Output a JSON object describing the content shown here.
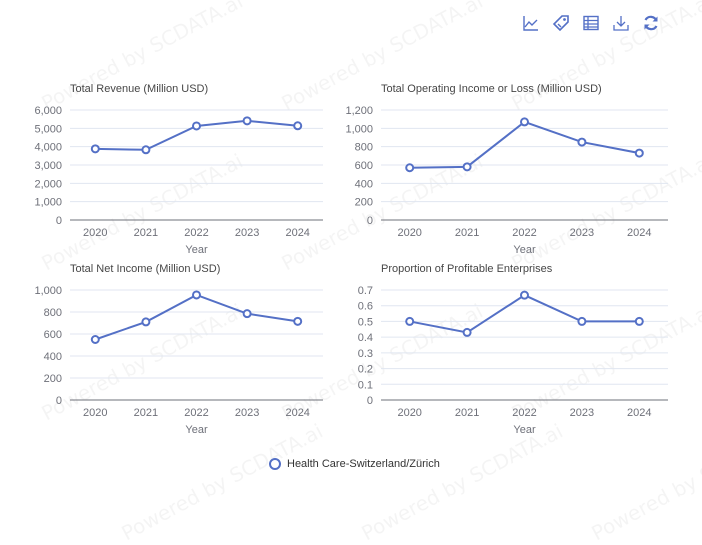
{
  "toolbar": {
    "icons": [
      "line-chart-icon",
      "tag-icon",
      "data-table-icon",
      "download-icon",
      "refresh-icon"
    ],
    "color": "#5470c6"
  },
  "watermark_text": "Powered by SCDATA.ai",
  "legend": {
    "label": "Health Care-Switzerland/Zürich",
    "color": "#5470c6"
  },
  "chart_data": [
    {
      "type": "line",
      "title": "Total Revenue (Million USD)",
      "xlabel": "Year",
      "ylabel": "",
      "categories": [
        "2020",
        "2021",
        "2022",
        "2023",
        "2024"
      ],
      "series": [
        {
          "name": "Health Care-Switzerland/Zürich",
          "values": [
            3880,
            3830,
            5130,
            5410,
            5140
          ]
        }
      ],
      "ylim": [
        0,
        6000
      ],
      "yticks": [
        0,
        1000,
        2000,
        3000,
        4000,
        5000,
        6000
      ],
      "ytick_labels": [
        "0",
        "1,000",
        "2,000",
        "3,000",
        "4,000",
        "5,000",
        "6,000"
      ],
      "grid": true
    },
    {
      "type": "line",
      "title": "Total Operating Income or Loss (Million USD)",
      "xlabel": "Year",
      "ylabel": "",
      "categories": [
        "2020",
        "2021",
        "2022",
        "2023",
        "2024"
      ],
      "series": [
        {
          "name": "Health Care-Switzerland/Zürich",
          "values": [
            570,
            580,
            1070,
            850,
            730
          ]
        }
      ],
      "ylim": [
        0,
        1200
      ],
      "yticks": [
        0,
        200,
        400,
        600,
        800,
        1000,
        1200
      ],
      "ytick_labels": [
        "0",
        "200",
        "400",
        "600",
        "800",
        "1,000",
        "1,200"
      ],
      "grid": true
    },
    {
      "type": "line",
      "title": "Total Net Income (Million USD)",
      "xlabel": "Year",
      "ylabel": "",
      "categories": [
        "2020",
        "2021",
        "2022",
        "2023",
        "2024"
      ],
      "series": [
        {
          "name": "Health Care-Switzerland/Zürich",
          "values": [
            550,
            710,
            955,
            785,
            715
          ]
        }
      ],
      "ylim": [
        0,
        1000
      ],
      "yticks": [
        0,
        200,
        400,
        600,
        800,
        1000
      ],
      "ytick_labels": [
        "0",
        "200",
        "400",
        "600",
        "800",
        "1,000"
      ],
      "grid": true
    },
    {
      "type": "line",
      "title": "Proportion of Profitable Enterprises",
      "xlabel": "Year",
      "ylabel": "",
      "categories": [
        "2020",
        "2021",
        "2022",
        "2023",
        "2024"
      ],
      "series": [
        {
          "name": "Health Care-Switzerland/Zürich",
          "values": [
            0.5,
            0.43,
            0.667,
            0.5,
            0.5
          ]
        }
      ],
      "ylim": [
        0,
        0.7
      ],
      "yticks": [
        0,
        0.1,
        0.2,
        0.3,
        0.4,
        0.5,
        0.6,
        0.7
      ],
      "ytick_labels": [
        "0",
        "0.1",
        "0.2",
        "0.3",
        "0.4",
        "0.5",
        "0.6",
        "0.7"
      ],
      "grid": true
    }
  ]
}
